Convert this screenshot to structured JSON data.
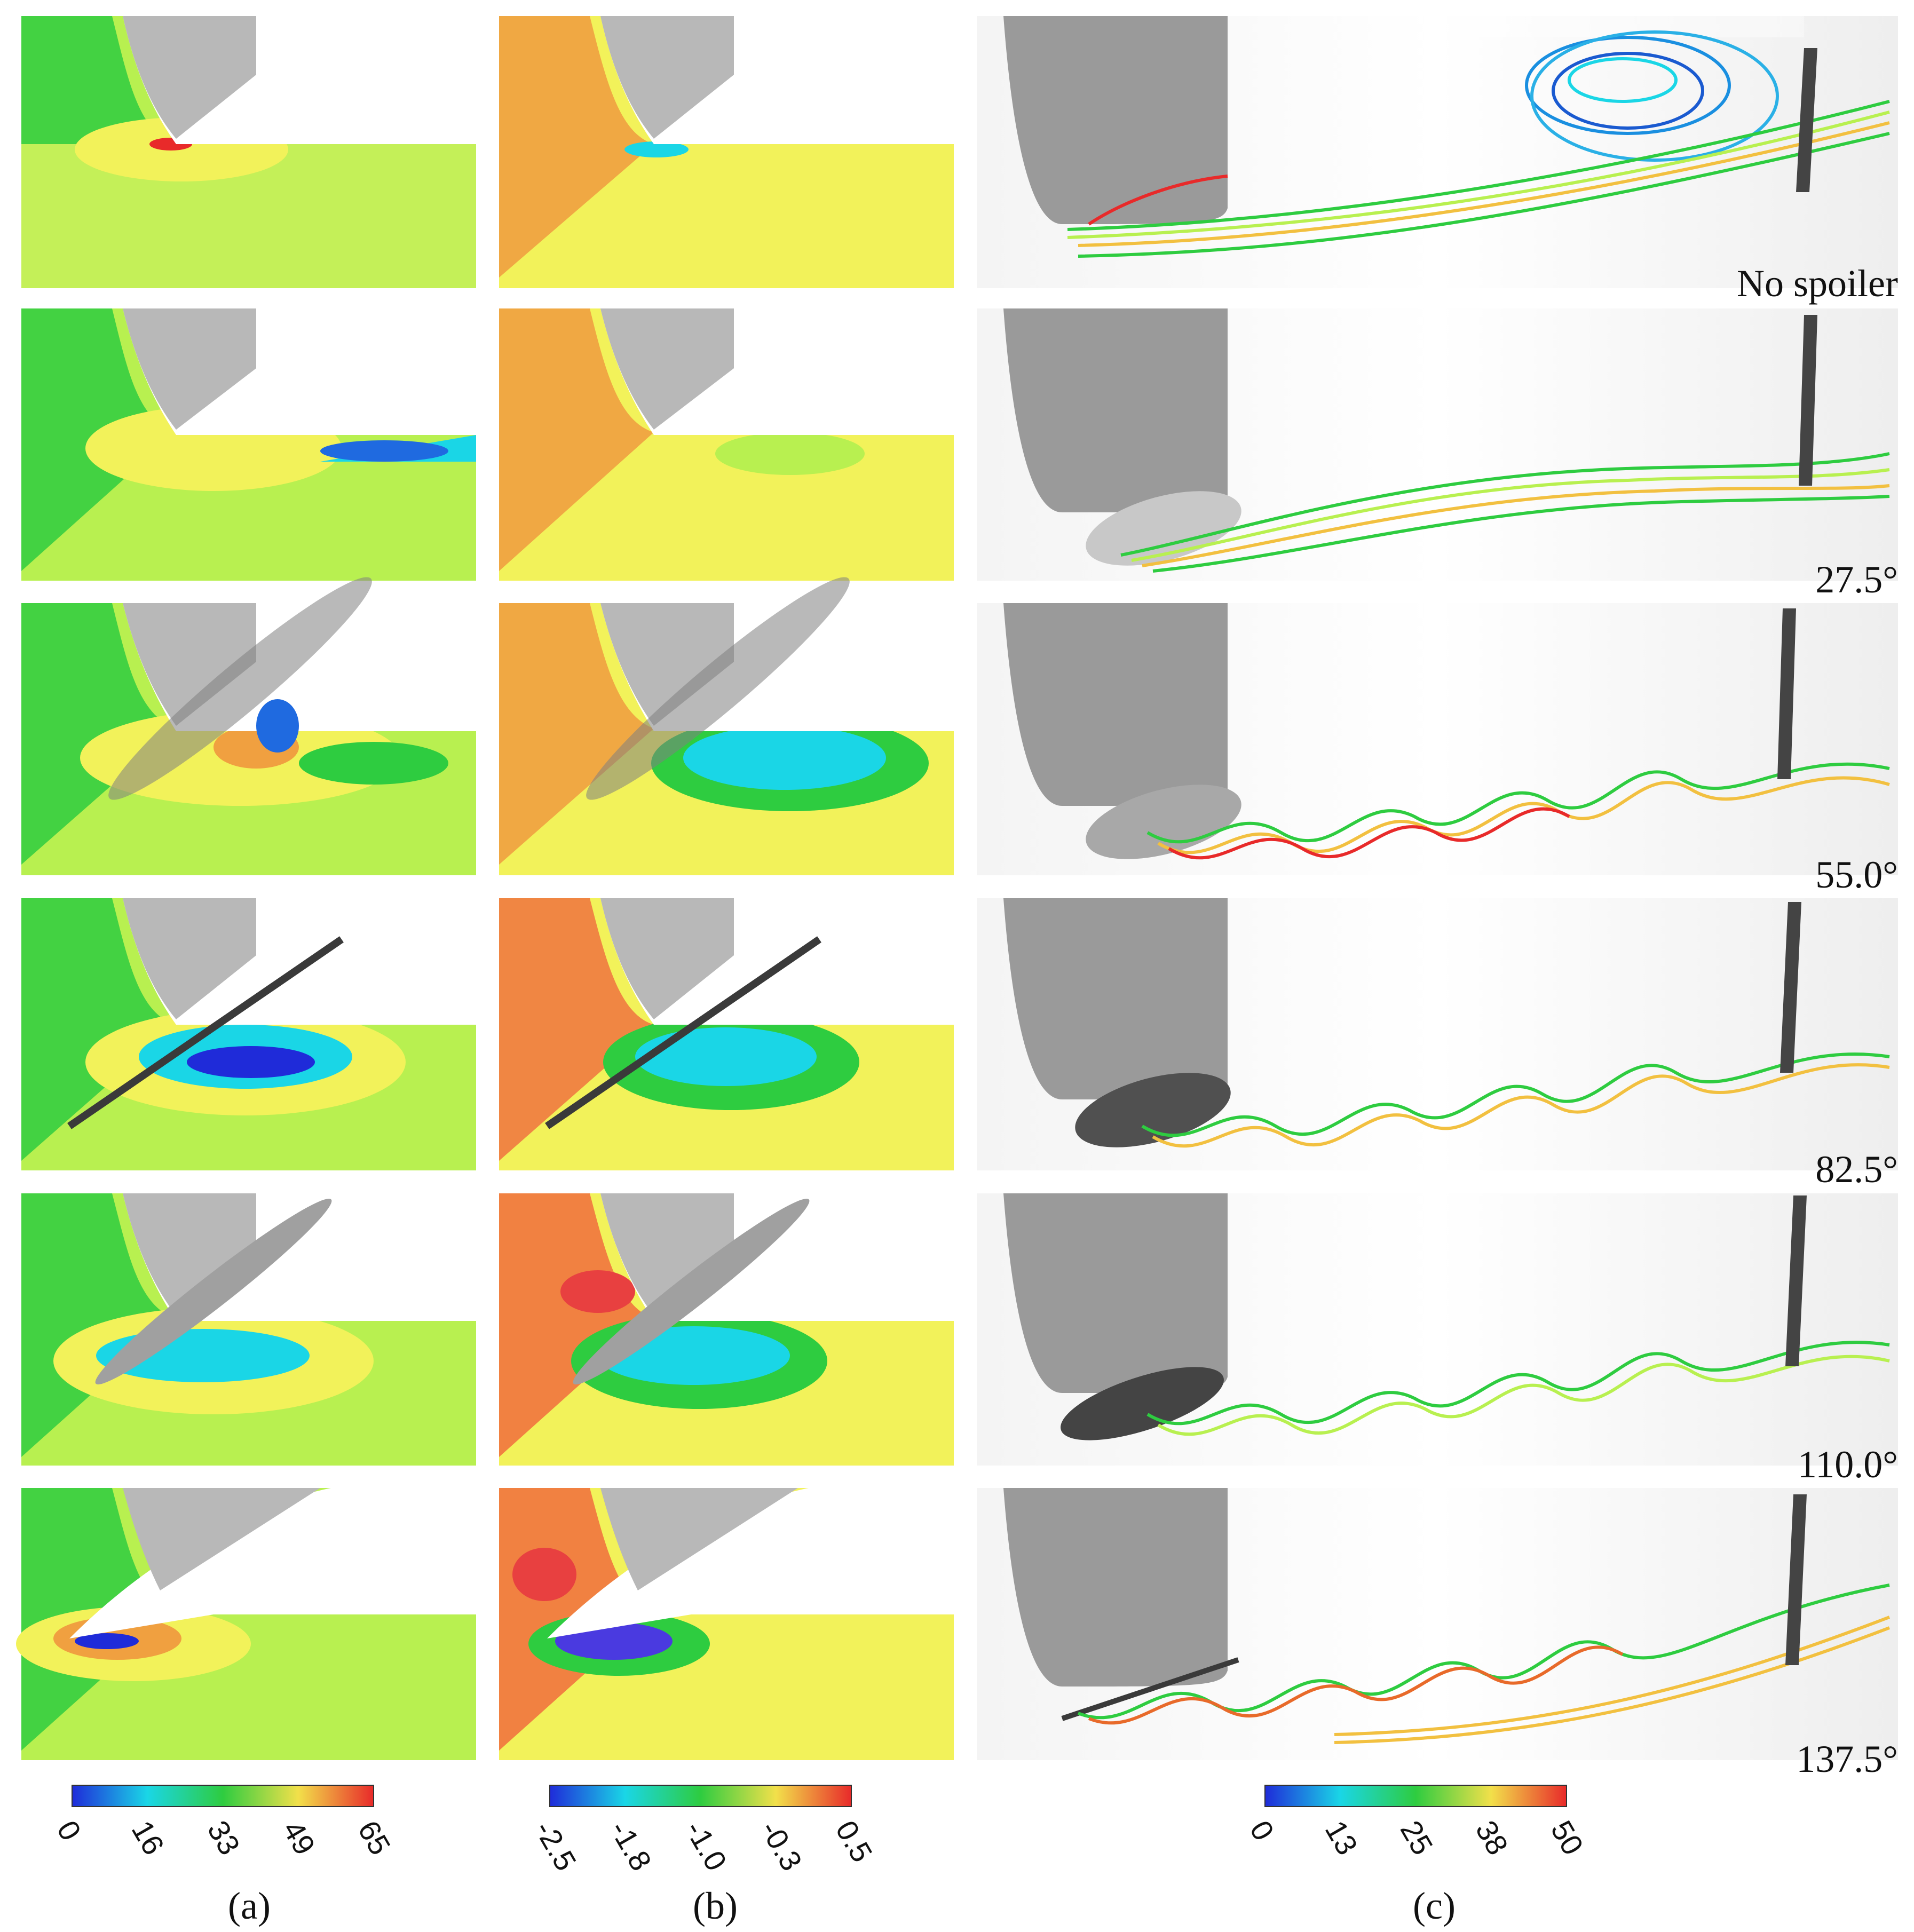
{
  "row_labels": [
    "No spoiler",
    "27.5°",
    "55.0°",
    "82.5°",
    "110.0°",
    "137.5°"
  ],
  "panel_labels": {
    "a": "(a)",
    "b": "(b)",
    "c": "(c)"
  },
  "colorbars": {
    "a": {
      "ticks": [
        "0",
        "16",
        "33",
        "49",
        "65"
      ]
    },
    "b": {
      "ticks": [
        "-2.5",
        "-1.8",
        "-1.0",
        "-0.3",
        "0.5"
      ]
    },
    "c": {
      "ticks": [
        "0",
        "13",
        "25",
        "38",
        "50"
      ]
    }
  },
  "colors": {
    "blue": "#1f2bd9",
    "cyan": "#1ad6e6",
    "green": "#2ecc40",
    "yellowgreen": "#b8f050",
    "yellow": "#f2f25a",
    "orange": "#f0a040",
    "red": "#e82a2a",
    "grey_wheel": "#b8b8b8",
    "dark_strut": "#444444"
  }
}
